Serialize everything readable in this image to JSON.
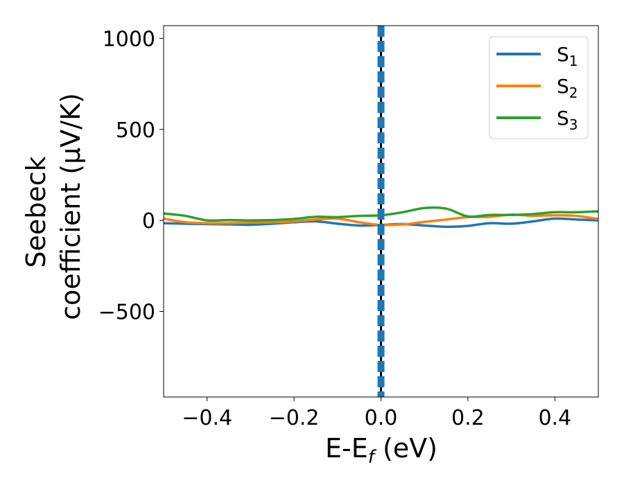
{
  "chart_data": {
    "type": "line",
    "xlabel": "E-E",
    "xlabel_sub": "f",
    "xlabel_unit": " (eV)",
    "ylabel_line1": "Seebeck",
    "ylabel_line2": "coefficient  (μV/K)",
    "xlim": [
      -0.5,
      0.5
    ],
    "ylim": [
      -970,
      1070
    ],
    "x_ticks": [
      -0.4,
      -0.2,
      0.0,
      0.2,
      0.4
    ],
    "x_tick_labels": [
      "−0.4",
      "−0.2",
      "0.0",
      "0.2",
      "0.4"
    ],
    "y_ticks": [
      -500,
      0,
      500,
      1000
    ],
    "y_tick_labels": [
      "−500",
      "0",
      "500",
      "1000"
    ],
    "grid": false,
    "legend_position": "top-right",
    "vertical_lines": [
      {
        "x": 0.0,
        "style": "solid",
        "color": "#000000"
      },
      {
        "x": 0.0,
        "style": "dashed",
        "color": "#1f77b4"
      }
    ],
    "series": [
      {
        "name": "S",
        "sub": "1",
        "color": "#1f77b4",
        "x": [
          -0.5,
          -0.45,
          -0.4,
          -0.35,
          -0.3,
          -0.25,
          -0.2,
          -0.15,
          -0.1,
          -0.05,
          0.0,
          0.05,
          0.1,
          0.15,
          0.2,
          0.25,
          0.3,
          0.35,
          0.4,
          0.45,
          0.5
        ],
        "y": [
          -15,
          -18,
          -20,
          -22,
          -24,
          -18,
          -10,
          -5,
          -18,
          -28,
          -25,
          -20,
          -28,
          -35,
          -30,
          -15,
          -18,
          -5,
          10,
          5,
          0
        ]
      },
      {
        "name": "S",
        "sub": "2",
        "color": "#ff7f0e",
        "x": [
          -0.5,
          -0.45,
          -0.4,
          -0.35,
          -0.3,
          -0.25,
          -0.2,
          -0.15,
          -0.1,
          -0.05,
          0.0,
          0.05,
          0.1,
          0.15,
          0.2,
          0.25,
          0.3,
          0.35,
          0.4,
          0.45,
          0.5
        ],
        "y": [
          10,
          -10,
          -15,
          -15,
          -12,
          -10,
          -5,
          5,
          10,
          -10,
          -25,
          -22,
          -8,
          5,
          18,
          20,
          32,
          25,
          28,
          25,
          8
        ]
      },
      {
        "name": "S",
        "sub": "3",
        "color": "#2ca02c",
        "x": [
          -0.5,
          -0.45,
          -0.4,
          -0.35,
          -0.3,
          -0.25,
          -0.2,
          -0.15,
          -0.1,
          -0.05,
          0.0,
          0.05,
          0.1,
          0.15,
          0.2,
          0.25,
          0.3,
          0.35,
          0.4,
          0.45,
          0.5
        ],
        "y": [
          38,
          25,
          0,
          2,
          0,
          2,
          8,
          20,
          18,
          25,
          28,
          45,
          68,
          65,
          22,
          30,
          30,
          35,
          45,
          45,
          50
        ]
      }
    ]
  }
}
